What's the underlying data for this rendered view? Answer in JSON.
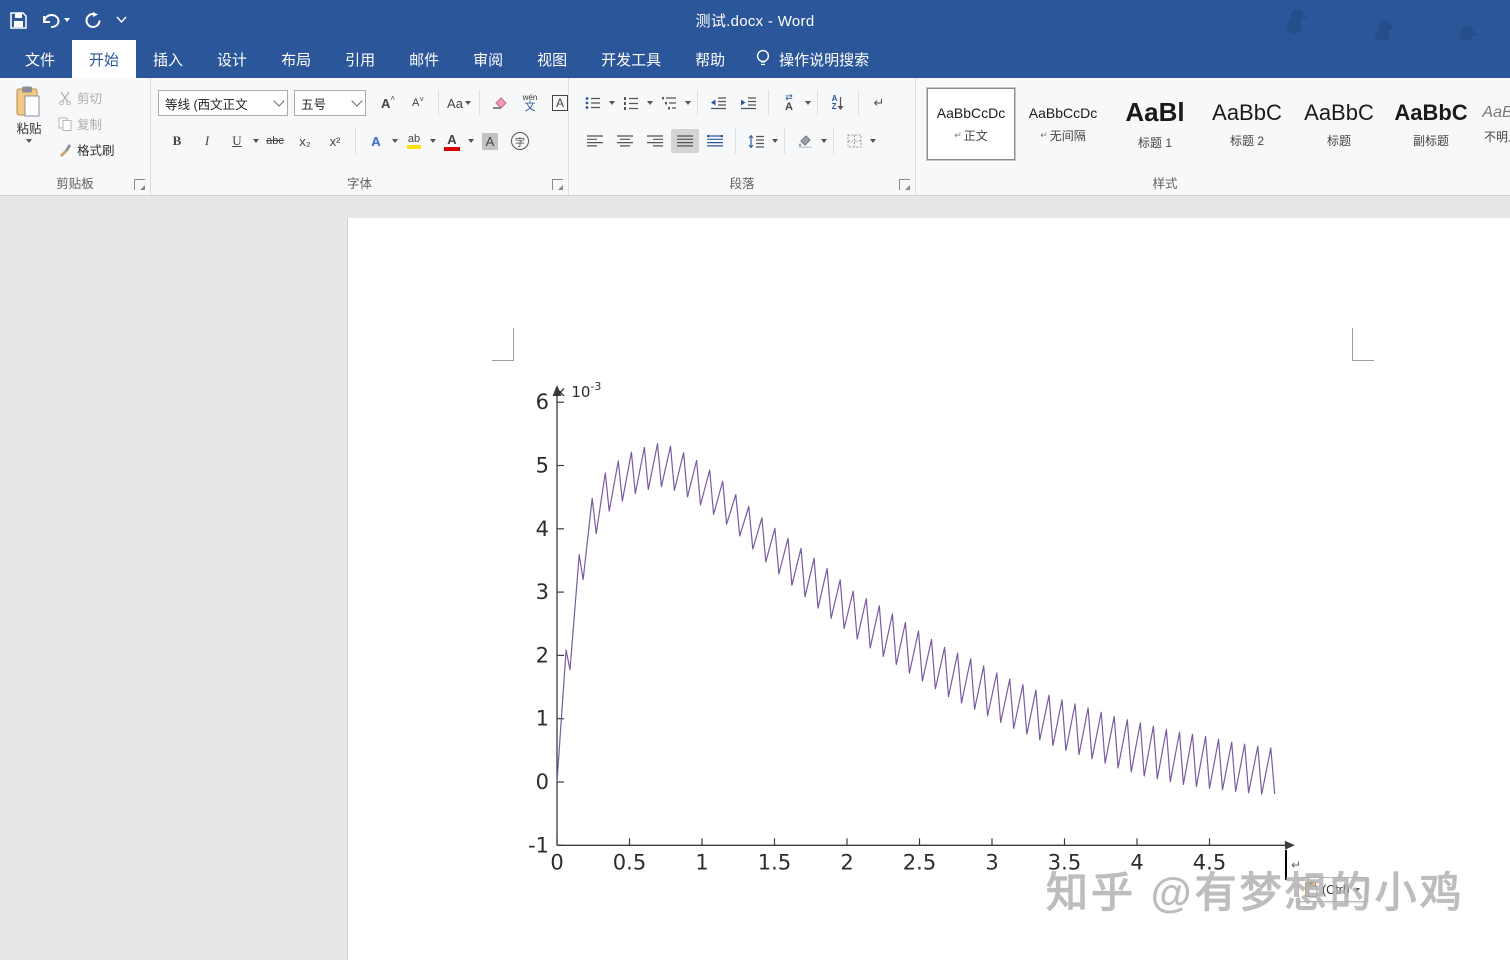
{
  "window": {
    "title": "测试.docx - Word"
  },
  "tabs": [
    {
      "label": "文件"
    },
    {
      "label": "开始"
    },
    {
      "label": "插入"
    },
    {
      "label": "设计"
    },
    {
      "label": "布局"
    },
    {
      "label": "引用"
    },
    {
      "label": "邮件"
    },
    {
      "label": "审阅"
    },
    {
      "label": "视图"
    },
    {
      "label": "开发工具"
    },
    {
      "label": "帮助"
    }
  ],
  "tellme": {
    "label": "操作说明搜索"
  },
  "ribbon": {
    "clipboard": {
      "group_label": "剪贴板",
      "paste": "粘贴",
      "cut": "剪切",
      "copy": "复制",
      "format_painter": "格式刷"
    },
    "font": {
      "group_label": "字体",
      "font_name": "等线 (西文正文",
      "font_size": "五号",
      "grow": "A",
      "shrink": "A",
      "change_case": "Aa",
      "phonetic_top": "wén",
      "phonetic_bottom": "文",
      "char_border_letter": "A",
      "bold": "B",
      "italic": "I",
      "underline": "U",
      "strike": "abc",
      "subscript": "x₂",
      "superscript": "x²",
      "text_effects_letter": "A",
      "highlight_letters": "ab",
      "font_color_letter": "A",
      "char_shading_letter": "A",
      "enclose_letter": "字"
    },
    "paragraph": {
      "group_label": "段落",
      "asian_layout_arrows": "⇄",
      "asian_layout_letter": "A",
      "sort_top": "A",
      "sort_bottom": "Z",
      "mark_glyph": "↵"
    },
    "styles": {
      "group_label": "样式",
      "items": [
        {
          "sample": "AaBbCcDc",
          "marker": "↵",
          "label": "正文"
        },
        {
          "sample": "AaBbCcDc",
          "marker": "↵",
          "label": "无间隔"
        },
        {
          "sample": "AaBl",
          "marker": "",
          "label": "标题 1"
        },
        {
          "sample": "AaBbC",
          "marker": "",
          "label": "标题 2"
        },
        {
          "sample": "AaBbC",
          "marker": "",
          "label": "标题"
        },
        {
          "sample": "AaBbC",
          "marker": "",
          "label": "副标题"
        },
        {
          "sample": "AaBb",
          "marker": "",
          "label": "不明显"
        }
      ]
    }
  },
  "document": {
    "watermark": "知乎 @有梦想的小鸡",
    "paste_options_label": "(Ctrl)",
    "pilcrow_mark": "↵"
  },
  "chart_data": {
    "type": "line",
    "title": "",
    "xlabel": "",
    "ylabel": "",
    "y_exponent_base": "× 10",
    "y_exponent_power": "-3",
    "x_ticks": [
      0,
      0.5,
      1,
      1.5,
      2,
      2.5,
      3,
      3.5,
      4,
      4.5
    ],
    "y_ticks": [
      -1,
      0,
      1,
      2,
      3,
      4,
      5,
      6
    ],
    "x_range": [
      0,
      5.0
    ],
    "y_range": [
      -1,
      6
    ],
    "grid": false,
    "legend": null,
    "line_color": "#7a5ba0",
    "axis_color": "#3c3c3c",
    "description": "Sawtooth-rippled transient (values ×10⁻³): rises steeply from 0, peaks ≈5.35e-3 near x≈0.7, then decays toward ≈0.2e-3 by x≈4.9 with ripple period ≈0.09 and trough dips slightly below 0 after x≈4.2",
    "tooth_period": 0.09,
    "rise_fraction": 0.7,
    "x_end": 4.98,
    "envelope_top": [
      [
        0,
        0.15
      ],
      [
        0.07,
        2.3
      ],
      [
        0.16,
        3.7
      ],
      [
        0.25,
        4.55
      ],
      [
        0.35,
        4.95
      ],
      [
        0.5,
        5.2
      ],
      [
        0.68,
        5.35
      ],
      [
        0.8,
        5.3
      ],
      [
        0.95,
        5.1
      ],
      [
        1.1,
        4.85
      ],
      [
        1.25,
        4.5
      ],
      [
        1.45,
        4.1
      ],
      [
        1.65,
        3.75
      ],
      [
        1.85,
        3.4
      ],
      [
        2.05,
        3.0
      ],
      [
        2.25,
        2.75
      ],
      [
        2.45,
        2.45
      ],
      [
        2.65,
        2.15
      ],
      [
        2.85,
        1.95
      ],
      [
        3.05,
        1.7
      ],
      [
        3.25,
        1.5
      ],
      [
        3.45,
        1.32
      ],
      [
        3.65,
        1.18
      ],
      [
        3.85,
        1.03
      ],
      [
        4.05,
        0.92
      ],
      [
        4.25,
        0.8
      ],
      [
        4.45,
        0.73
      ],
      [
        4.65,
        0.63
      ],
      [
        4.85,
        0.56
      ],
      [
        4.98,
        0.52
      ]
    ],
    "envelope_bottom": [
      [
        0,
        0.0
      ],
      [
        0.07,
        2.0
      ],
      [
        0.16,
        3.35
      ],
      [
        0.25,
        4.0
      ],
      [
        0.35,
        4.35
      ],
      [
        0.5,
        4.55
      ],
      [
        0.68,
        4.68
      ],
      [
        0.8,
        4.6
      ],
      [
        0.95,
        4.4
      ],
      [
        1.1,
        4.15
      ],
      [
        1.25,
        3.85
      ],
      [
        1.45,
        3.4
      ],
      [
        1.65,
        3.0
      ],
      [
        1.85,
        2.6
      ],
      [
        2.05,
        2.25
      ],
      [
        2.25,
        1.95
      ],
      [
        2.45,
        1.65
      ],
      [
        2.65,
        1.38
      ],
      [
        2.85,
        1.15
      ],
      [
        3.05,
        0.92
      ],
      [
        3.25,
        0.72
      ],
      [
        3.45,
        0.52
      ],
      [
        3.65,
        0.38
      ],
      [
        3.85,
        0.22
      ],
      [
        4.05,
        0.08
      ],
      [
        4.25,
        -0.02
      ],
      [
        4.45,
        -0.1
      ],
      [
        4.65,
        -0.15
      ],
      [
        4.85,
        -0.2
      ],
      [
        4.98,
        -0.2
      ]
    ]
  }
}
